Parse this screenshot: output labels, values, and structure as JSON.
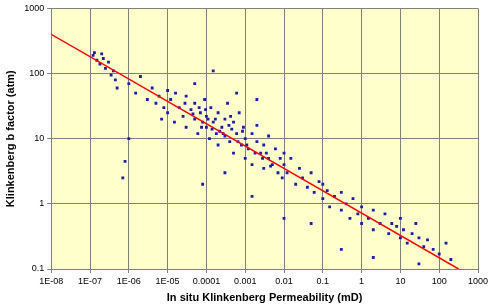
{
  "chart_data": {
    "type": "scatter",
    "xlabel": "In situ Klinkenberg Permeability (mD)",
    "ylabel": "Klinkenberg b factor (atm)",
    "log": true,
    "grid": true,
    "xlim": [
      1e-08,
      1000
    ],
    "ylim": [
      0.1,
      1000
    ],
    "xticks": [
      {
        "value": 1e-08,
        "label": "1E-08"
      },
      {
        "value": 1e-07,
        "label": "1E-07"
      },
      {
        "value": 1e-06,
        "label": "1E-06"
      },
      {
        "value": 1e-05,
        "label": "1E-05"
      },
      0.0001,
      0.001,
      0.01,
      0.1,
      1,
      10,
      100,
      1000
    ],
    "yticks": [
      0.1,
      1,
      10,
      100,
      1000
    ],
    "series": [
      {
        "type": "scatter",
        "marker": "square",
        "color": "#1c1ca8",
        "x": [
          1.2e-07,
          1.5e-07,
          1.8e-07,
          2e-07,
          2.5e-07,
          3e-07,
          3.5e-07,
          4e-07,
          1.3e-07,
          2.2e-07,
          5e-07,
          4.5e-07,
          7e-07,
          8e-07,
          1e-06,
          1e-06,
          1.5e-06,
          2e-06,
          3e-06,
          4e-06,
          5e-06,
          6e-06,
          8e-06,
          1e-05,
          7e-06,
          1e-05,
          1.2e-05,
          1.5e-05,
          2e-05,
          2.5e-05,
          3e-05,
          3e-05,
          4e-05,
          5e-05,
          5e-05,
          6e-05,
          7e-05,
          8e-05,
          9e-05,
          0.0001,
          0.0001,
          0.00012,
          0.00013,
          0.00015,
          0.00018,
          0.0002,
          0.0002,
          0.00025,
          0.0003,
          0.0003,
          0.00035,
          0.0004,
          0.00045,
          0.0005,
          0.0005,
          0.0006,
          0.0007,
          0.0008,
          0.0009,
          0.001,
          0.001,
          0.0012,
          0.0015,
          0.0015,
          0.002,
          0.002,
          0.0025,
          0.003,
          0.003,
          0.004,
          0.004,
          0.005,
          0.006,
          0.007,
          0.008,
          0.009,
          0.01,
          0.01,
          0.00015,
          0.002,
          5e-05,
          0.0006,
          8e-05,
          0.0015,
          0.0003,
          0.00011,
          0.00022,
          0.00042,
          0.00065,
          0.00085,
          0.0011,
          0.0018,
          0.0028,
          0.0035,
          0.0045,
          1.6e-05,
          2.8e-05,
          4.5e-05,
          6.5e-05,
          7.5e-05,
          9.5e-05,
          0.00014,
          0.00017,
          0.00027,
          0.00038,
          0.012,
          0.015,
          0.02,
          0.025,
          0.03,
          0.04,
          0.05,
          0.06,
          0.08,
          0.1,
          0.1,
          0.13,
          0.15,
          0.2,
          0.3,
          0.3,
          0.4,
          0.5,
          0.6,
          0.8,
          1,
          1,
          1.5,
          2,
          2,
          3,
          4,
          5,
          6,
          8,
          10,
          10,
          12,
          15,
          20,
          25,
          30,
          40,
          50,
          70,
          100,
          150,
          200,
          0.05,
          0.3,
          2,
          30,
          0.01
        ],
        "values": [
          190,
          160,
          140,
          200,
          120,
          150,
          95,
          110,
          210,
          170,
          60,
          80,
          2.5,
          4.5,
          10,
          70,
          50,
          90,
          40,
          60,
          35,
          45,
          30,
          55,
          20,
          25,
          40,
          18,
          30,
          22,
          45,
          15,
          28,
          20,
          35,
          12,
          25,
          18,
          40,
          15,
          22,
          10,
          30,
          18,
          12,
          25,
          8,
          15,
          20,
          11,
          35,
          9,
          14,
          18,
          6,
          12,
          25,
          8,
          15,
          10,
          5,
          7,
          12,
          4,
          9,
          16,
          6,
          8,
          3.5,
          5,
          11,
          4,
          7,
          3,
          5,
          2.5,
          4,
          6,
          110,
          40,
          70,
          50,
          2,
          1.3,
          3,
          20,
          13,
          22,
          9,
          13,
          8,
          6,
          5,
          6,
          3.8,
          50,
          35,
          24,
          30,
          15,
          28,
          14,
          20,
          12,
          16,
          3,
          5,
          2,
          3.5,
          2.5,
          1.8,
          3,
          1.5,
          2.2,
          1.2,
          2,
          1.6,
          0.9,
          1.3,
          0.8,
          1.5,
          1,
          0.6,
          1.2,
          0.7,
          0.9,
          0.5,
          0.6,
          0.8,
          0.4,
          0.5,
          0.7,
          0.35,
          0.5,
          0.45,
          0.3,
          0.6,
          0.4,
          0.25,
          0.35,
          0.5,
          0.3,
          0.22,
          0.28,
          0.2,
          0.17,
          0.25,
          0.14,
          0.5,
          0.2,
          0.15,
          0.12,
          0.6
        ]
      },
      {
        "type": "line",
        "line_style": "solid",
        "color": "#ff0000",
        "x": [
          1e-08,
          316
        ],
        "values": [
          400,
          0.1
        ]
      }
    ]
  }
}
